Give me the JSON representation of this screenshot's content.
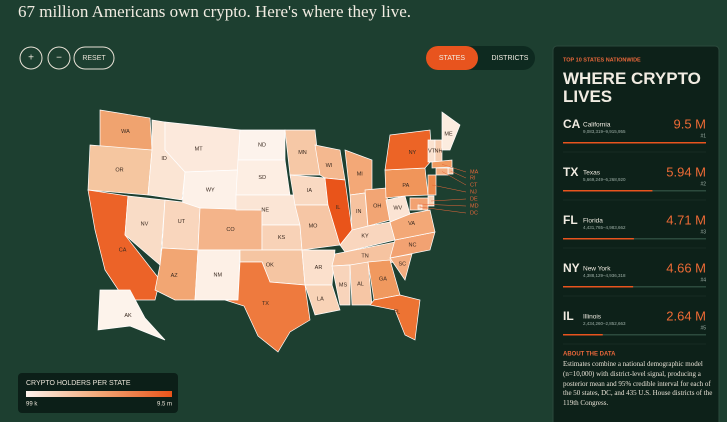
{
  "header": {
    "title": "67 million Americans own crypto. Here's where they live."
  },
  "controls": {
    "zoom_in": "+",
    "zoom_out": "−",
    "reset": "RESET",
    "toggle": [
      "STATES",
      "DISTRICTS"
    ],
    "active": 0
  },
  "map": {
    "states": [
      {
        "label": "WA",
        "color": "#f0a36f"
      },
      {
        "label": "OR",
        "color": "#f5c6a0"
      },
      {
        "label": "CA",
        "color": "#ec6328"
      },
      {
        "label": "NV",
        "color": "#f9dcc6"
      },
      {
        "label": "ID",
        "color": "#fbe5d4"
      },
      {
        "label": "MT",
        "color": "#fce9dc"
      },
      {
        "label": "WY",
        "color": "#fdf1e8"
      },
      {
        "label": "UT",
        "color": "#f9d6bd"
      },
      {
        "label": "CO",
        "color": "#f4b48a"
      },
      {
        "label": "AZ",
        "color": "#f2a673"
      },
      {
        "label": "NM",
        "color": "#fdf0e6"
      },
      {
        "label": "ND",
        "color": "#fdf3ec"
      },
      {
        "label": "SD",
        "color": "#fdeee3"
      },
      {
        "label": "NE",
        "color": "#fbe5d5"
      },
      {
        "label": "KS",
        "color": "#f8d2b7"
      },
      {
        "label": "OK",
        "color": "#f5c5a2"
      },
      {
        "label": "TX",
        "color": "#ee7a3e"
      },
      {
        "label": "MN",
        "color": "#f6c8a6"
      },
      {
        "label": "IA",
        "color": "#f9d9c2"
      },
      {
        "label": "MO",
        "color": "#f6c6a5"
      },
      {
        "label": "AR",
        "color": "#fbe0cc"
      },
      {
        "label": "LA",
        "color": "#f8d3b7"
      },
      {
        "label": "WI",
        "color": "#f4b88f"
      },
      {
        "label": "IL",
        "color": "#e9541a"
      },
      {
        "label": "MI",
        "color": "#f3a877"
      },
      {
        "label": "IN",
        "color": "#f6c3a0"
      },
      {
        "label": "OH",
        "color": "#f2a574"
      },
      {
        "label": "KY",
        "color": "#f9d6be"
      },
      {
        "label": "TN",
        "color": "#f6c3a0"
      },
      {
        "label": "MS",
        "color": "#f8d4bb"
      },
      {
        "label": "AL",
        "color": "#f6c6a5"
      },
      {
        "label": "GA",
        "color": "#f0995f"
      },
      {
        "label": "FL",
        "color": "#ed7333"
      },
      {
        "label": "SC",
        "color": "#f3ad80"
      },
      {
        "label": "NC",
        "color": "#f2a272"
      },
      {
        "label": "VA",
        "color": "#f3a877"
      },
      {
        "label": "WV",
        "color": "#fbe4d4"
      },
      {
        "label": "PA",
        "color": "#f0955a"
      },
      {
        "label": "NY",
        "color": "#ec6426"
      },
      {
        "label": "VT",
        "color": "#fbe2d0"
      },
      {
        "label": "NH",
        "color": "#f7cdb0"
      },
      {
        "label": "ME",
        "color": "#fcecdf"
      },
      {
        "label": "MA",
        "color": "#f09a60"
      },
      {
        "label": "RI",
        "color": "#f5bf98"
      },
      {
        "label": "CT",
        "color": "#f3ad80"
      },
      {
        "label": "NJ",
        "color": "#ef8a4c"
      },
      {
        "label": "DE",
        "color": "#f8d3b7"
      },
      {
        "label": "MD",
        "color": "#f2a272"
      },
      {
        "label": "DC",
        "color": "#f6c6a5"
      },
      {
        "label": "AK",
        "color": "#fdf3eb"
      }
    ]
  },
  "legend": {
    "title": "CRYPTO HOLDERS PER STATE",
    "min_label": "99 k",
    "max_label": "9.5 m"
  },
  "panel": {
    "kicker": "TOP 10 STATES NATIONWIDE",
    "title": "WHERE CRYPTO LIVES",
    "entries": [
      {
        "abbr": "CA",
        "name": "California",
        "range": "9,083,319–9,915,955",
        "value": 9.5,
        "value_label": "9.5 M",
        "rank": "#1"
      },
      {
        "abbr": "TX",
        "name": "Texas",
        "range": "5,669,249–6,268,920",
        "value": 5.94,
        "value_label": "5.94 M",
        "rank": "#2"
      },
      {
        "abbr": "FL",
        "name": "Florida",
        "range": "4,431,765–4,983,662",
        "value": 4.71,
        "value_label": "4.71 M",
        "rank": "#3"
      },
      {
        "abbr": "NY",
        "name": "New York",
        "range": "4,388,129–4,936,318",
        "value": 4.66,
        "value_label": "4.66 M",
        "rank": "#4"
      },
      {
        "abbr": "IL",
        "name": "Illinois",
        "range": "2,434,260–2,852,663",
        "value": 2.64,
        "value_label": "2.64 M",
        "rank": "#5"
      }
    ],
    "about_title": "ABOUT THE DATA",
    "about_text": "Estimates combine a national demographic model (n=10,000) with district-level signal, producing a posterior mean and 95% credible interval for each of the 50 states, DC, and 435 U.S. House districts of the 119th Congress."
  }
}
